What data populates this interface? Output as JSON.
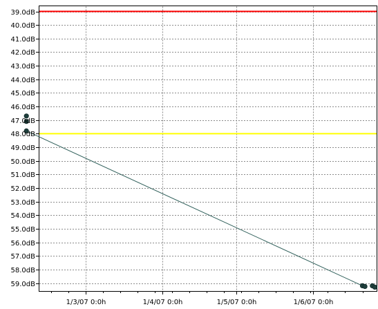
{
  "chart_data": {
    "type": "line",
    "title": "",
    "xlabel": "",
    "ylabel": "",
    "y_tick_labels": [
      "39.0dB",
      "40.0dB",
      "41.0dB",
      "42.0dB",
      "43.0dB",
      "44.0dB",
      "45.0dB",
      "46.0dB",
      "47.0dB",
      "48.0dB",
      "49.0dB",
      "50.0dB",
      "51.0dB",
      "52.0dB",
      "53.0dB",
      "54.0dB",
      "55.0dB",
      "56.0dB",
      "57.0dB",
      "58.0dB",
      "59.0dB"
    ],
    "x_tick_labels": [
      "1/3/07 0:0h",
      "1/4/07 0:0h",
      "1/5/07 0:0h",
      "1/6/07 0:0h"
    ],
    "x_tick_dates": [
      "2007-03-01",
      "2007-04-01",
      "2007-05-01",
      "2007-06-01"
    ],
    "ylim": [
      39.0,
      60.0
    ],
    "y_inverted": true,
    "xlim": [
      "2007-02-05",
      "2007-06-27"
    ],
    "grid": true,
    "reference_lines": [
      {
        "y": 39.0,
        "color": "#ff0000"
      },
      {
        "y": 48.0,
        "color": "#ffff00"
      }
    ],
    "series": [
      {
        "color": "#2f5f5a",
        "points": [
          {
            "x": "2007-02-05",
            "y": 46.7
          },
          {
            "x": "2007-02-05",
            "y": 47.1
          },
          {
            "x": "2007-02-05",
            "y": 47.8
          },
          {
            "x": "2007-06-21",
            "y": 59.2
          },
          {
            "x": "2007-06-22",
            "y": 59.25
          },
          {
            "x": "2007-06-25",
            "y": 59.2
          },
          {
            "x": "2007-06-26",
            "y": 59.3
          }
        ],
        "line": [
          {
            "x": "2007-02-05",
            "y": 47.8
          },
          {
            "x": "2007-06-21",
            "y": 59.2
          }
        ]
      }
    ]
  }
}
